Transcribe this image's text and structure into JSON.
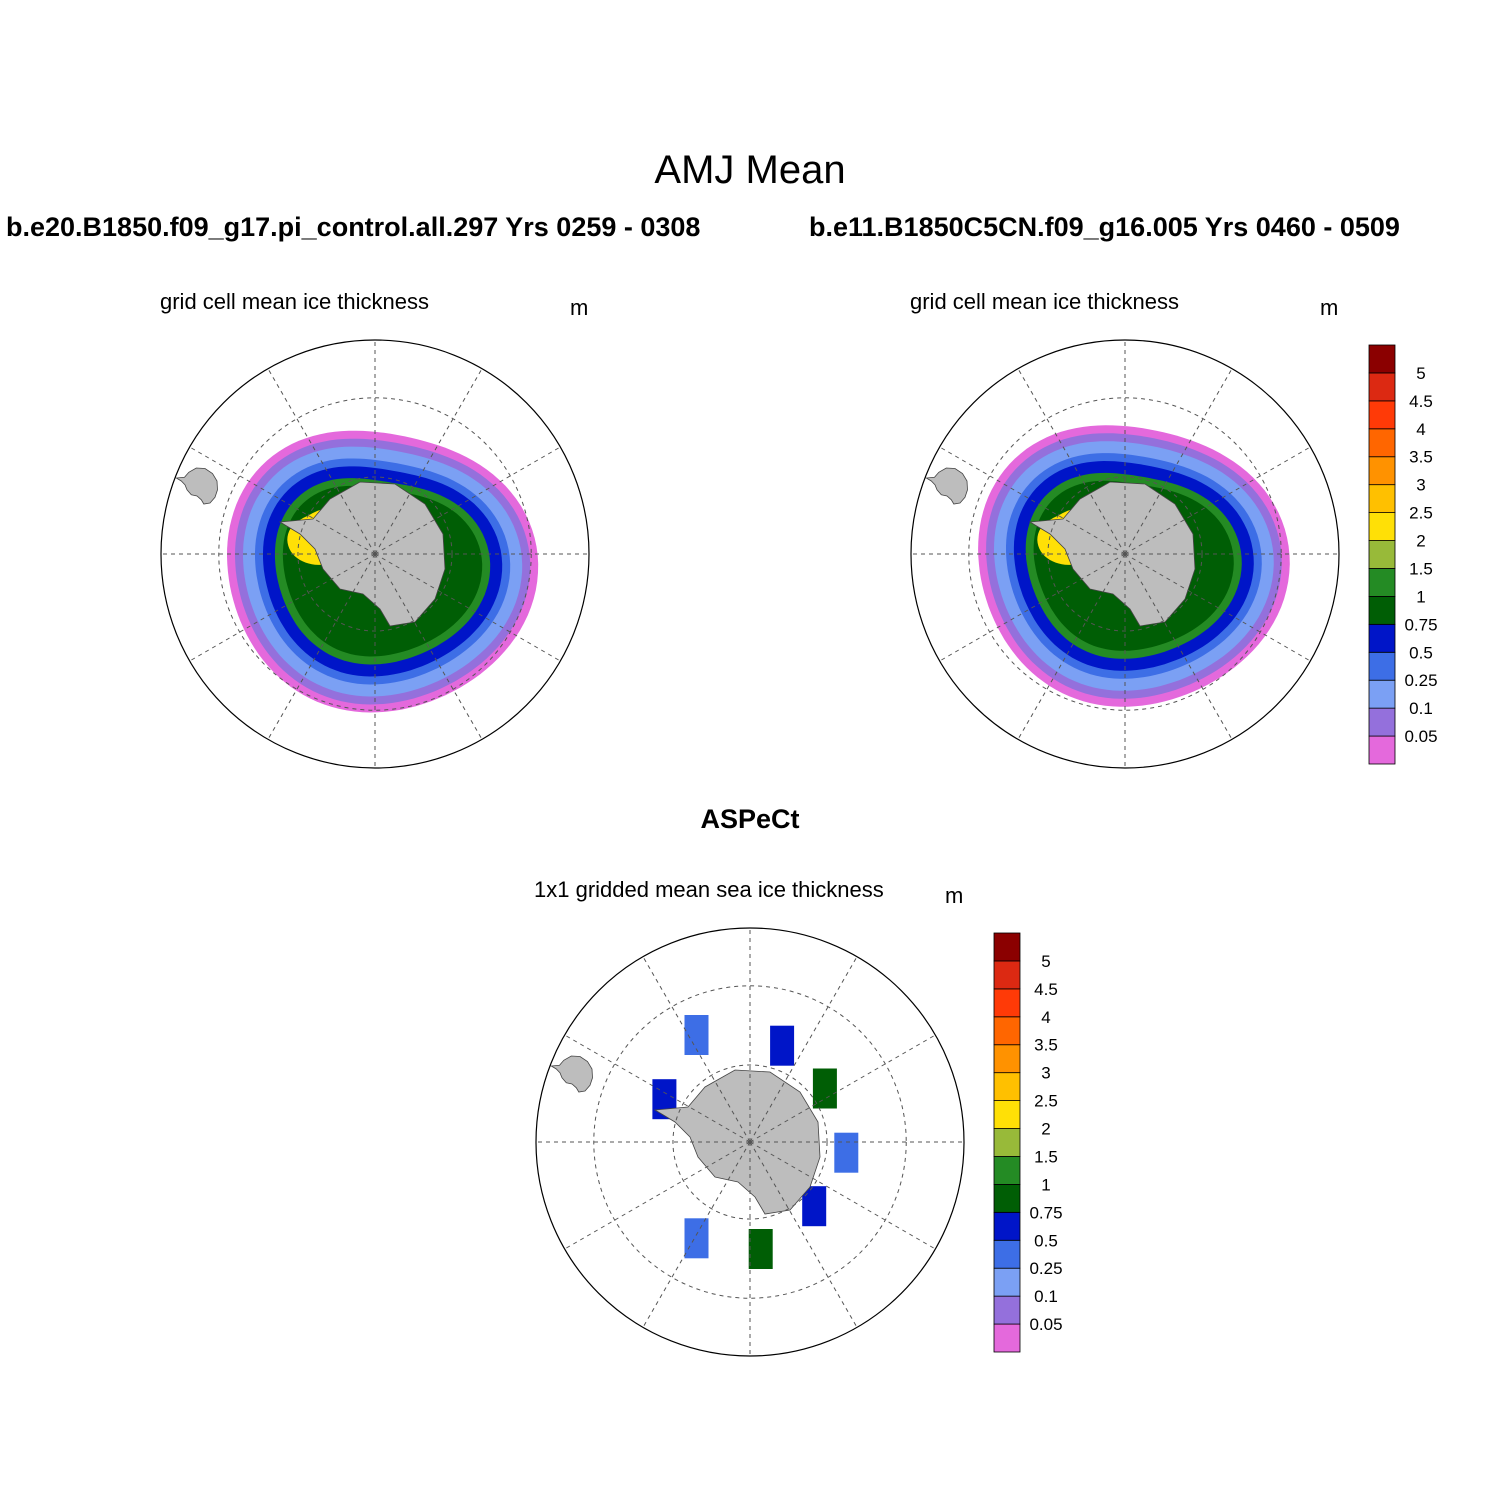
{
  "title": "AMJ Mean",
  "panels": [
    {
      "case": "b.e20.B1850.f09_g17.pi_control.all.297  Yrs 0259 - 0308",
      "variable": "grid cell mean ice thickness",
      "units": "m"
    },
    {
      "case": "b.e11.B1850C5CN.f09_g16.005  Yrs 0460 - 0509",
      "variable": "grid cell mean ice thickness",
      "units": "m"
    },
    {
      "case": "ASPeCt",
      "variable": "1x1 gridded mean sea ice thickness",
      "units": "m"
    }
  ],
  "colorbar": {
    "labels": [
      "0.05",
      "0.1",
      "0.25",
      "0.5",
      "0.75",
      "1",
      "1.5",
      "2",
      "2.5",
      "3",
      "3.5",
      "4",
      "4.5",
      "5"
    ],
    "colors": [
      "#e469dc",
      "#9470dc",
      "#7ba0f4",
      "#3d6ee6",
      "#0015c8",
      "#005e05",
      "#248b24",
      "#98ba39",
      "#ffe006",
      "#ffc000",
      "#ff9200",
      "#ff6600",
      "#ff3a07",
      "#dc2912",
      "#8b0000"
    ]
  },
  "map_colors": {
    "land": "#bdbdbd",
    "ocean": "#ffffff",
    "ice_shelf": "#ffffff"
  }
}
